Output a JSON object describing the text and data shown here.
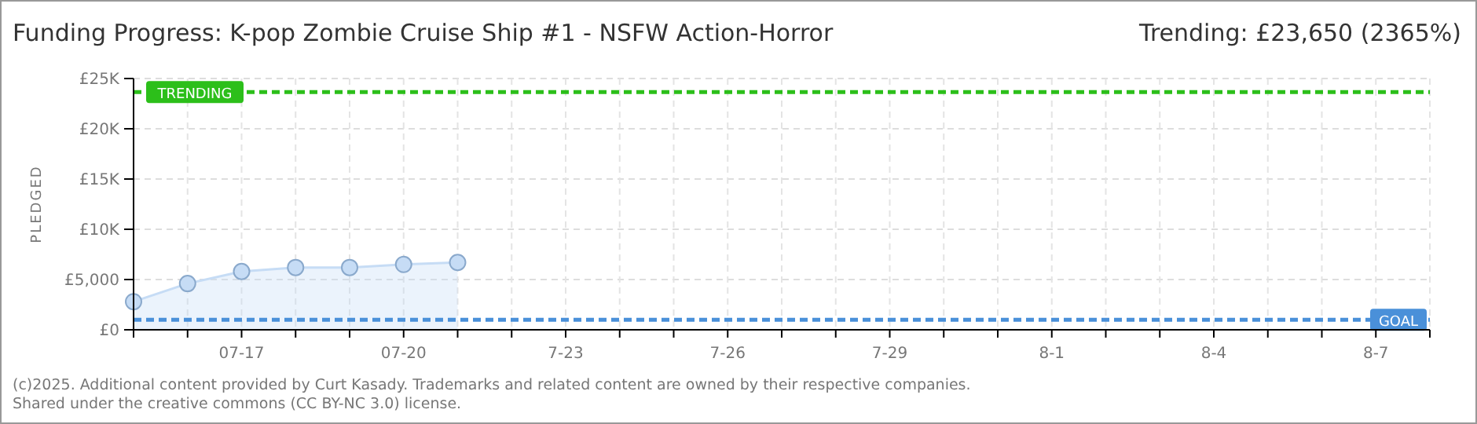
{
  "chart_data": {
    "type": "area",
    "title": "Funding Progress: K-pop Zombie Cruise Ship #1 - NSFW Action-Horror",
    "subtitle": "Trending:  £23,650 (2365%)",
    "ylabel": "PLEDGED",
    "annotations": [
      "(c)2025. Additional content provided by Curt Kasady. Trademarks and related content are owned by their respective companies.",
      "Shared under the creative commons (CC BY-NC 3.0) license."
    ],
    "x": [
      "--07-15",
      "--07-16",
      "--07-17",
      "--07-18",
      "--07-19",
      "--07-20",
      "--07-21"
    ],
    "series": [
      {
        "color": "#c6dcf5",
        "values": [
          2800,
          4600,
          5800,
          6200,
          6200,
          6500,
          6700
        ]
      }
    ],
    "xlim": [
      "--07-15",
      "--08-08"
    ],
    "xticks": [
      {
        "value": "--07-15",
        "label": null
      },
      {
        "value": "--07-16",
        "label": null
      },
      {
        "value": "--07-17",
        "label": "07-17"
      },
      {
        "value": "--07-18",
        "label": null
      },
      {
        "value": "--07-19",
        "label": null
      },
      {
        "value": "--07-20",
        "label": "07-20"
      },
      {
        "value": "--07-21",
        "label": null
      },
      {
        "value": "--07-22",
        "label": null
      },
      {
        "value": "--07-23",
        "label": "7-23"
      },
      {
        "value": "--07-24",
        "label": null
      },
      {
        "value": "--07-25",
        "label": null
      },
      {
        "value": "--07-26",
        "label": "7-26"
      },
      {
        "value": "--07-27",
        "label": null
      },
      {
        "value": "--07-28",
        "label": null
      },
      {
        "value": "--07-29",
        "label": "7-29"
      },
      {
        "value": "--07-30",
        "label": null
      },
      {
        "value": "--07-31",
        "label": null
      },
      {
        "value": "--08-01",
        "label": "8-1"
      },
      {
        "value": "--08-02",
        "label": null
      },
      {
        "value": "--08-03",
        "label": null
      },
      {
        "value": "--08-04",
        "label": "8-4"
      },
      {
        "value": "--08-05",
        "label": null
      },
      {
        "value": "--08-06",
        "label": null
      },
      {
        "value": "--08-07",
        "label": "8-7"
      },
      {
        "value": "--08-08",
        "label": null
      }
    ],
    "ylim": [
      0,
      25000
    ],
    "yticks": [
      {
        "value": 0,
        "label": "£0"
      },
      {
        "value": 5000,
        "label": "£5,000"
      },
      {
        "value": 10000,
        "label": "£10K"
      },
      {
        "value": 15000,
        "label": "£15K"
      },
      {
        "value": 20000,
        "label": "£20K"
      },
      {
        "value": 25000,
        "label": "£25K"
      }
    ],
    "ref_lines": [
      {
        "axis": "y",
        "value": 23650,
        "label": "TRENDING",
        "color": "#2cbf1a",
        "line_style": "dashed"
      },
      {
        "axis": "y",
        "value": 1000,
        "label": "GOAL",
        "color": "#4a90d9",
        "line_style": "dashed"
      }
    ],
    "grid": true,
    "marker": "circle"
  }
}
